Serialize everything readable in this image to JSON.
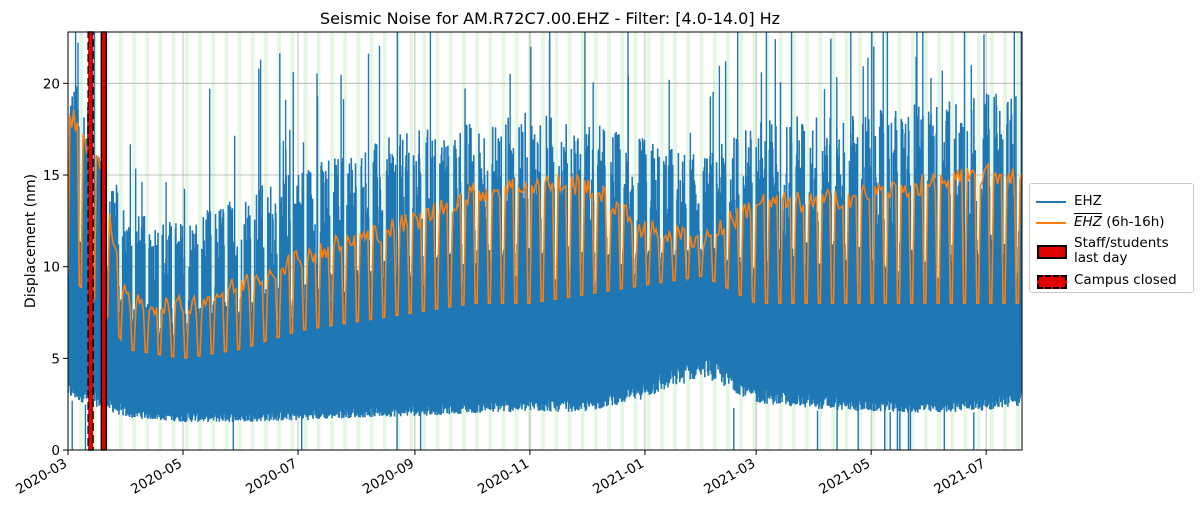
{
  "chart_data": {
    "type": "line",
    "title": "Seismic Noise for AM.R72C7.00.EHZ - Filter: [4.0-14.0] Hz",
    "xlabel": "",
    "ylabel": "Displacement (nm)",
    "xlim": [
      "2020-03-01",
      "2021-07-20"
    ],
    "ylim": [
      0,
      22.8
    ],
    "grid": true,
    "x_ticks": [
      "2020-03",
      "2020-05",
      "2020-07",
      "2020-09",
      "2020-11",
      "2021-01",
      "2021-03",
      "2021-05",
      "2021-07"
    ],
    "y_ticks": [
      0,
      5,
      10,
      15,
      20
    ],
    "legend_placement": "outside-right",
    "weekend_shading_color": "#e3f7e3",
    "series": [
      {
        "name": "EHZ",
        "color": "#1f77b4",
        "description_points": [
          {
            "x": "2020-03-01",
            "low": 3.5,
            "high": 20.5
          },
          {
            "x": "2020-03-15",
            "low": 3.0,
            "high": 19.0
          },
          {
            "x": "2020-04-01",
            "low": 2.2,
            "high": 13.0
          },
          {
            "x": "2020-05-01",
            "low": 1.9,
            "high": 12.5
          },
          {
            "x": "2020-06-01",
            "low": 1.9,
            "high": 14.0
          },
          {
            "x": "2020-07-01",
            "low": 2.0,
            "high": 15.5
          },
          {
            "x": "2020-08-01",
            "low": 2.2,
            "high": 16.5
          },
          {
            "x": "2020-09-01",
            "low": 2.3,
            "high": 17.5
          },
          {
            "x": "2020-10-01",
            "low": 2.5,
            "high": 18.0
          },
          {
            "x": "2020-11-01",
            "low": 2.6,
            "high": 18.5
          },
          {
            "x": "2020-12-01",
            "low": 2.6,
            "high": 18.0
          },
          {
            "x": "2021-01-01",
            "low": 3.5,
            "high": 17.0
          },
          {
            "x": "2021-02-01",
            "low": 5.0,
            "high": 16.0
          },
          {
            "x": "2021-03-01",
            "low": 3.2,
            "high": 18.0
          },
          {
            "x": "2021-04-01",
            "low": 2.8,
            "high": 18.5
          },
          {
            "x": "2021-05-01",
            "low": 2.6,
            "high": 18.5
          },
          {
            "x": "2021-06-01",
            "low": 2.5,
            "high": 19.0
          },
          {
            "x": "2021-07-01",
            "low": 2.7,
            "high": 19.5
          },
          {
            "x": "2021-07-20",
            "low": 3.0,
            "high": 19.5
          }
        ]
      },
      {
        "name": "EHZ (6h-16h)",
        "name_overline": "EHZ",
        "name_suffix": " (6h-16h)",
        "color": "#ff7f0e",
        "description_points": [
          {
            "x": "2020-03-01",
            "weekday": 18.5,
            "weekend": 9.5
          },
          {
            "x": "2020-03-18",
            "weekday": 15.5,
            "weekend": 8.0
          },
          {
            "x": "2020-04-01",
            "weekday": 8.0,
            "weekend": 5.5
          },
          {
            "x": "2020-05-01",
            "weekday": 7.8,
            "weekend": 5.0
          },
          {
            "x": "2020-06-01",
            "weekday": 9.0,
            "weekend": 5.5
          },
          {
            "x": "2020-07-01",
            "weekday": 10.5,
            "weekend": 6.5
          },
          {
            "x": "2020-08-01",
            "weekday": 11.5,
            "weekend": 7.0
          },
          {
            "x": "2020-09-01",
            "weekday": 12.5,
            "weekend": 7.5
          },
          {
            "x": "2020-10-01",
            "weekday": 14.0,
            "weekend": 8.0
          },
          {
            "x": "2020-11-01",
            "weekday": 14.5,
            "weekend": 8.0
          },
          {
            "x": "2020-12-01",
            "weekday": 14.5,
            "weekend": 8.5
          },
          {
            "x": "2021-01-01",
            "weekday": 12.0,
            "weekend": 9.0
          },
          {
            "x": "2021-02-01",
            "weekday": 11.5,
            "weekend": 9.5
          },
          {
            "x": "2021-03-01",
            "weekday": 13.5,
            "weekend": 8.0
          },
          {
            "x": "2021-04-01",
            "weekday": 13.5,
            "weekend": 8.0
          },
          {
            "x": "2021-05-01",
            "weekday": 14.0,
            "weekend": 8.0
          },
          {
            "x": "2021-06-01",
            "weekday": 14.5,
            "weekend": 8.0
          },
          {
            "x": "2021-07-01",
            "weekday": 15.0,
            "weekend": 8.0
          },
          {
            "x": "2021-07-20",
            "weekday": 15.0,
            "weekend": 8.0
          }
        ]
      }
    ],
    "markers": [
      {
        "name": "Staff/students last day",
        "style": "solid",
        "date": "2020-03-20",
        "fill_color": "#e00000"
      },
      {
        "name": "Campus closed",
        "style": "dashed",
        "date": "2020-03-13",
        "fill_color": "#e00000"
      }
    ]
  },
  "legend": {
    "items": [
      {
        "label": "EHZ"
      },
      {
        "label_overline": "EHZ",
        "label_suffix": " (6h-16h)"
      },
      {
        "label_line1": "Staff/students",
        "label_line2": "last day"
      },
      {
        "label": "Campus closed"
      }
    ]
  }
}
